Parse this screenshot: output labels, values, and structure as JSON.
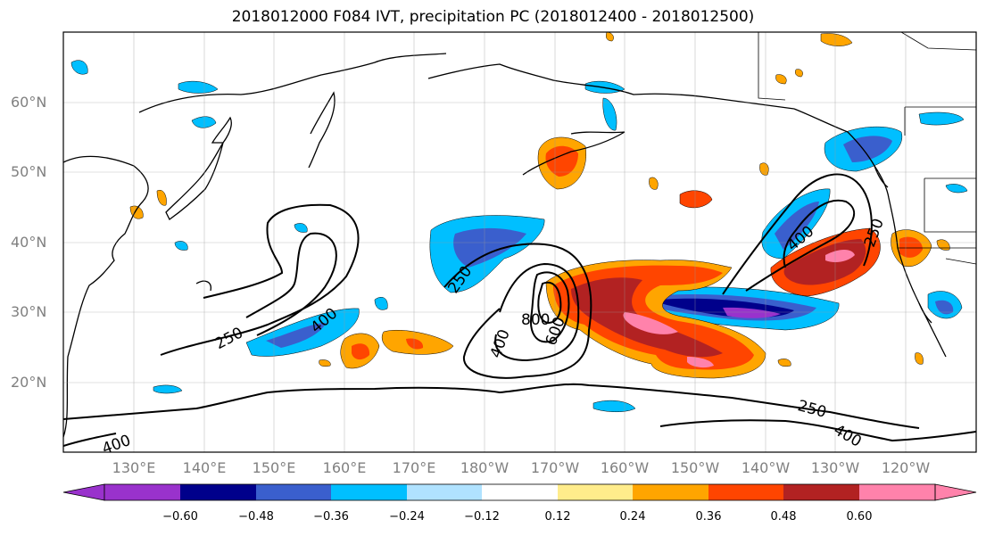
{
  "title": "2018012000 F084 IVT, precipitation PC (2018012400 - 2018012500)",
  "lat_labels": [
    "60°N",
    "50°N",
    "40°N",
    "30°N",
    "20°N"
  ],
  "lon_labels": [
    "130°E",
    "140°E",
    "150°E",
    "160°E",
    "170°E",
    "180°W",
    "170°W",
    "160°W",
    "150°W",
    "140°W",
    "130°W",
    "120°W"
  ],
  "colorbar": {
    "colors": [
      "#9932cc",
      "#00008b",
      "#3a5fcd",
      "#00bfff",
      "#b0e2ff",
      "#ffffff",
      "#ffec8b",
      "#ffa500",
      "#ff4500",
      "#b22222",
      "#ff82ab"
    ],
    "tick_labels": [
      "−0.60",
      "−0.48",
      "−0.36",
      "−0.24",
      "−0.12",
      "0.12",
      "0.24",
      "0.36",
      "0.48",
      "0.60"
    ]
  },
  "contour_labels": {
    "w250": "250",
    "w400": "400",
    "c250": "250",
    "c400": "400",
    "c600": "600",
    "c800": "800",
    "e250": "250",
    "e400": "400",
    "s250": "250",
    "s400": "400",
    "sw400": "400"
  }
}
